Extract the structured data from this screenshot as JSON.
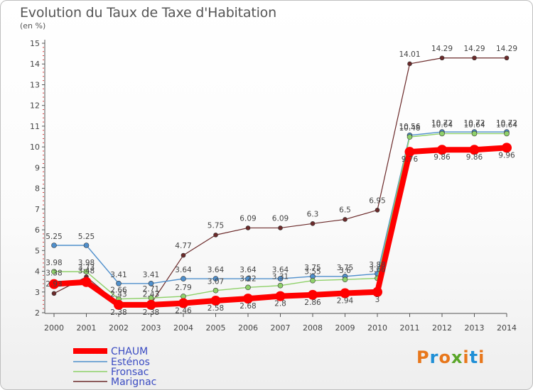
{
  "title": "Evolution du Taux de Taxe d'Habitation",
  "unit": "(en %)",
  "logo_text": "Proxiti",
  "chart_data": {
    "type": "line",
    "title": "Evolution du Taux de Taxe d'Habitation",
    "ylabel": "(en %)",
    "x": [
      2000,
      2001,
      2002,
      2003,
      2004,
      2005,
      2006,
      2007,
      2008,
      2009,
      2010,
      2011,
      2012,
      2013,
      2014
    ],
    "ylim": [
      2,
      15
    ],
    "yticks": [
      2,
      3,
      4,
      5,
      6,
      7,
      8,
      9,
      10,
      11,
      12,
      13,
      14,
      15
    ],
    "grid": false,
    "legend_position": "bottom-left",
    "series": [
      {
        "name": "CHAUM",
        "color": "#ff0000",
        "values": [
          3.38,
          3.48,
          2.38,
          2.38,
          2.46,
          2.58,
          2.68,
          2.8,
          2.86,
          2.94,
          3.0,
          9.76,
          9.86,
          9.86,
          9.96
        ],
        "labels": [
          "3.38",
          "3.48",
          "2.38",
          "2.38",
          "2.46",
          "2.58",
          "2.68",
          "2.8",
          "2.86",
          "2.94",
          "3",
          "9.76",
          "9.86",
          "9.86",
          "9.96"
        ]
      },
      {
        "name": "Esténos",
        "color": "#4f8fcc",
        "values": [
          5.25,
          5.25,
          3.41,
          3.41,
          3.64,
          3.64,
          3.64,
          3.64,
          3.75,
          3.75,
          3.88,
          10.56,
          10.72,
          10.72,
          10.72
        ],
        "labels": [
          "5.25",
          "5.25",
          "3.41",
          "3.41",
          "3.64",
          "3.64",
          "3.64",
          "3.64",
          "3.75",
          "3.75",
          "3.88",
          "10.56",
          "10.72",
          "10.72",
          "10.72"
        ]
      },
      {
        "name": "Fronsac",
        "color": "#8fd16a",
        "values": [
          3.98,
          3.98,
          2.66,
          2.71,
          2.79,
          3.07,
          3.22,
          3.31,
          3.55,
          3.6,
          3.66,
          10.48,
          10.64,
          10.64,
          10.64
        ],
        "labels": [
          "3.98",
          "3.98",
          "2.66",
          "2.71",
          "2.79",
          "3.07",
          "3.22",
          "3.31",
          "3.55",
          "3.6",
          "3.66",
          "10.48",
          "10.64",
          "10.64",
          "10.64"
        ]
      },
      {
        "name": "Marignac",
        "color": "#6b2a2a",
        "values": [
          2.93,
          3.73,
          2.43,
          2.43,
          4.77,
          5.75,
          6.09,
          6.09,
          6.3,
          6.5,
          6.95,
          14.01,
          14.29,
          14.29,
          14.29
        ],
        "labels": [
          "2.93",
          "3.73",
          "2.43",
          "2.43",
          "4.77",
          "5.75",
          "6.09",
          "6.09",
          "6.3",
          "6.5",
          "6.95",
          "14.01",
          "14.29",
          "14.29",
          "14.29"
        ]
      }
    ]
  }
}
